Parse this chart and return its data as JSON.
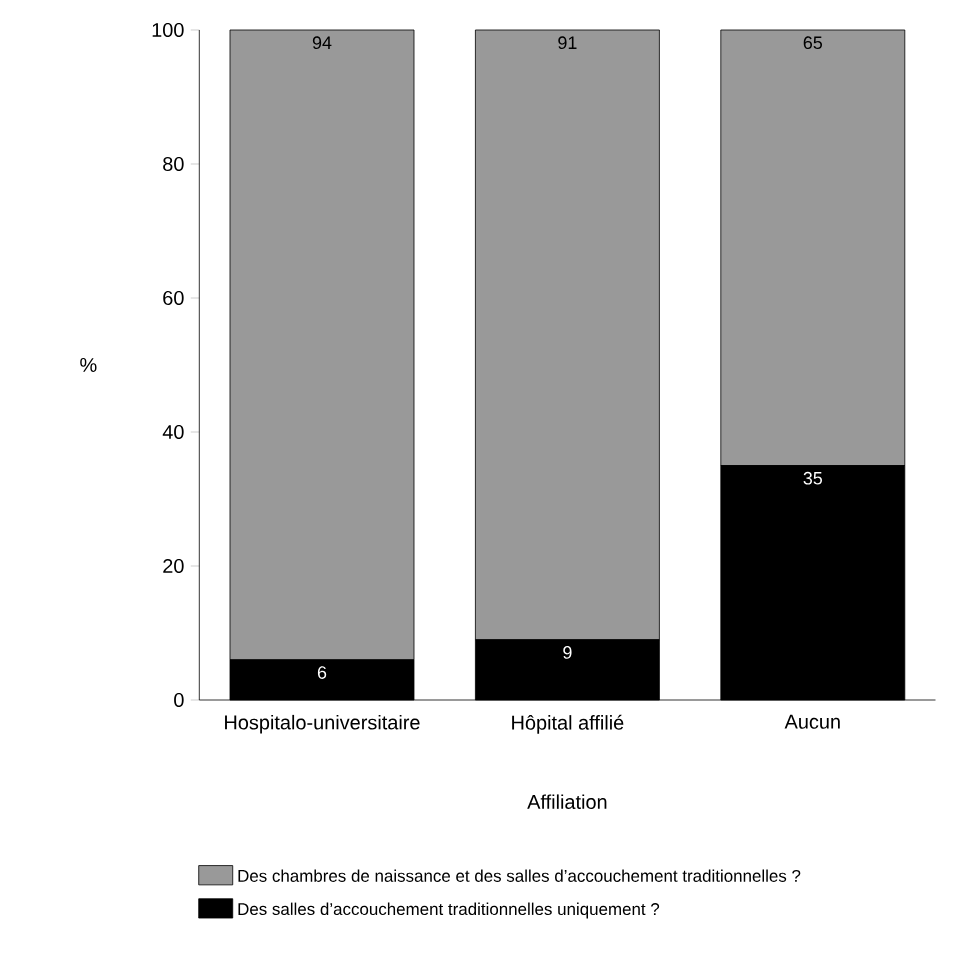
{
  "chart_data": {
    "type": "bar",
    "stacked": true,
    "xlabel": "Affiliation",
    "ylabel": "%",
    "categories": [
      "Hospitalo-universitaire",
      "Hôpital affilié",
      "Aucun"
    ],
    "series": [
      {
        "name": "Des salles d’accouchement traditionnelles uniquement ?",
        "color": "#000000",
        "values": [
          6,
          9,
          35
        ]
      },
      {
        "name": "Des chambres de naissance et des salles d’accouchement traditionnelles ?",
        "color": "#999999",
        "values": [
          94,
          91,
          65
        ]
      }
    ],
    "ylim": [
      0,
      100
    ],
    "yticks": [
      0,
      20,
      40,
      60,
      80,
      100
    ],
    "data_labels": true,
    "legend": "bottom",
    "grid": false
  }
}
